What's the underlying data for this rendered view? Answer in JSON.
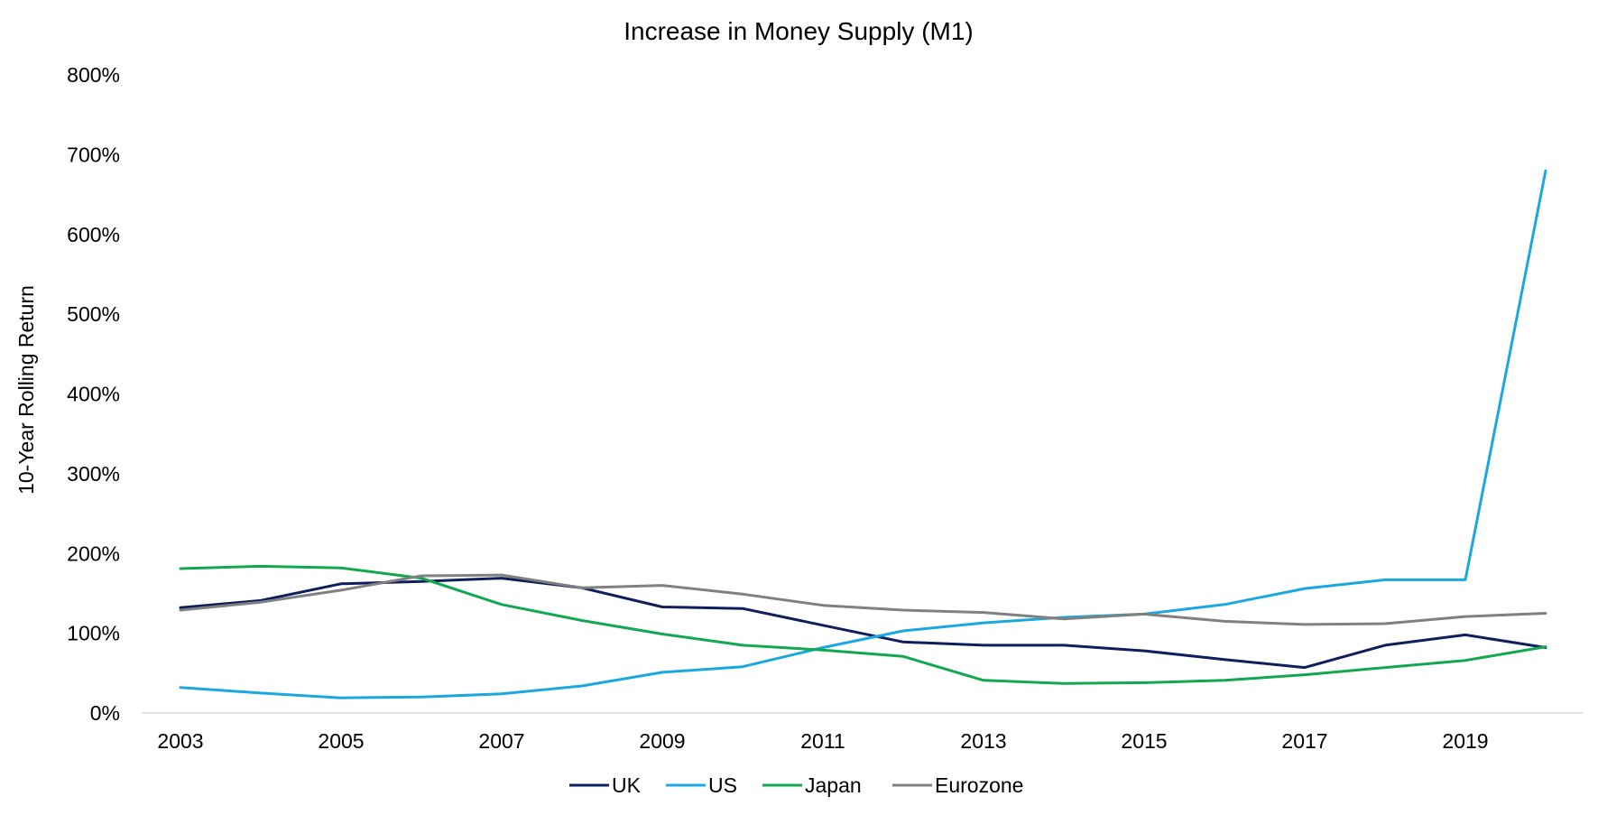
{
  "chart_data": {
    "type": "line",
    "title": "Increase in Money Supply (M1)",
    "xlabel": "",
    "ylabel": "10-Year Rolling Return",
    "x": [
      2003,
      2004,
      2005,
      2006,
      2007,
      2008,
      2009,
      2010,
      2011,
      2012,
      2013,
      2014,
      2015,
      2016,
      2017,
      2018,
      2019,
      2020
    ],
    "x_tick_labels": [
      "2003",
      "2005",
      "2007",
      "2009",
      "2011",
      "2013",
      "2015",
      "2017",
      "2019"
    ],
    "y_tick_labels": [
      "0%",
      "100%",
      "200%",
      "300%",
      "400%",
      "500%",
      "600%",
      "700%",
      "800%"
    ],
    "ylim": [
      0,
      800
    ],
    "grid": false,
    "legend_position": "bottom",
    "series": [
      {
        "name": "UK",
        "color": "#0d1f5c",
        "values": [
          132,
          141,
          162,
          165,
          169,
          157,
          133,
          131,
          110,
          89,
          85,
          85,
          78,
          67,
          57,
          85,
          98,
          82
        ]
      },
      {
        "name": "US",
        "color": "#1ba8e0",
        "values": [
          32,
          25,
          19,
          20,
          24,
          34,
          51,
          58,
          82,
          103,
          113,
          120,
          124,
          136,
          156,
          167,
          167,
          680
        ]
      },
      {
        "name": "Japan",
        "color": "#11a84f",
        "values": [
          181,
          184,
          182,
          169,
          136,
          116,
          99,
          85,
          79,
          71,
          41,
          37,
          38,
          41,
          48,
          57,
          66,
          83
        ]
      },
      {
        "name": "Eurozone",
        "color": "#808080",
        "values": [
          129,
          139,
          154,
          172,
          173,
          157,
          160,
          149,
          135,
          129,
          126,
          118,
          124,
          115,
          111,
          112,
          121,
          125
        ]
      }
    ]
  }
}
